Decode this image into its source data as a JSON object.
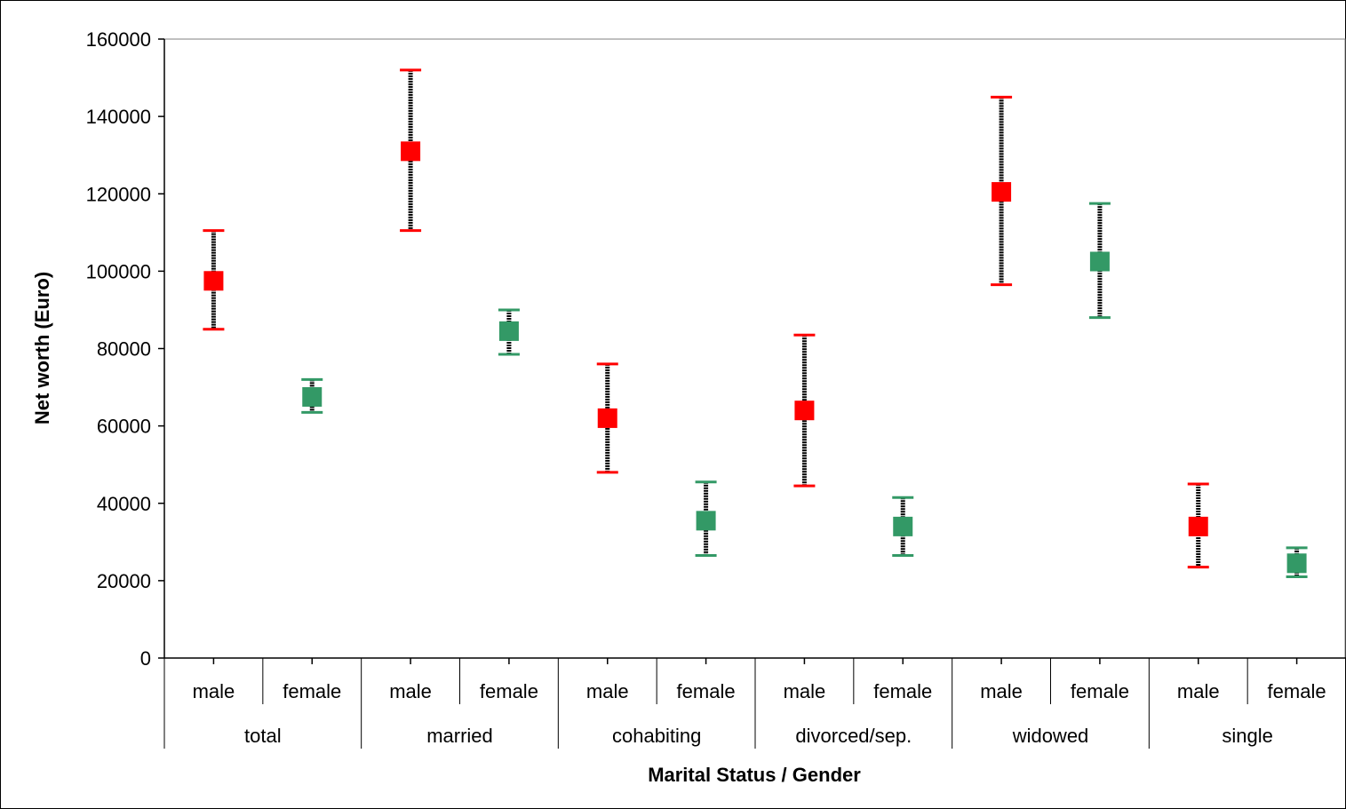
{
  "chart_data": {
    "type": "scatter",
    "subtype": "error-bar",
    "title": "",
    "xlabel": "Marital Status / Gender",
    "ylabel": "Net worth (Euro)",
    "ylim": [
      0,
      160000
    ],
    "yticks": [
      "0",
      "20000",
      "40000",
      "60000",
      "80000",
      "100000",
      "120000",
      "140000",
      "160000"
    ],
    "ytick_values": [
      0,
      20000,
      40000,
      60000,
      80000,
      100000,
      120000,
      140000,
      160000
    ],
    "grid": false,
    "legend": "none",
    "groups": [
      "total",
      "married",
      "cohabiting",
      "divorced/sep.",
      "widowed",
      "single"
    ],
    "subcategories": [
      "male",
      "female"
    ],
    "colors": {
      "male": "#ff0000",
      "female": "#339966",
      "error_bar": "#000000"
    },
    "points": [
      {
        "group": "total",
        "gender": "male",
        "value": 97500,
        "lower": 85000,
        "upper": 110500
      },
      {
        "group": "total",
        "gender": "female",
        "value": 67500,
        "lower": 63500,
        "upper": 72000
      },
      {
        "group": "married",
        "gender": "male",
        "value": 131000,
        "lower": 110500,
        "upper": 152000
      },
      {
        "group": "married",
        "gender": "female",
        "value": 84500,
        "lower": 78500,
        "upper": 90000
      },
      {
        "group": "cohabiting",
        "gender": "male",
        "value": 62000,
        "lower": 48000,
        "upper": 76000
      },
      {
        "group": "cohabiting",
        "gender": "female",
        "value": 35500,
        "lower": 26500,
        "upper": 45500
      },
      {
        "group": "divorced/sep.",
        "gender": "male",
        "value": 64000,
        "lower": 44500,
        "upper": 83500
      },
      {
        "group": "divorced/sep.",
        "gender": "female",
        "value": 34000,
        "lower": 26500,
        "upper": 41500
      },
      {
        "group": "widowed",
        "gender": "male",
        "value": 120500,
        "lower": 96500,
        "upper": 145000
      },
      {
        "group": "widowed",
        "gender": "female",
        "value": 102500,
        "lower": 88000,
        "upper": 117500
      },
      {
        "group": "single",
        "gender": "male",
        "value": 34000,
        "lower": 23500,
        "upper": 45000
      },
      {
        "group": "single",
        "gender": "female",
        "value": 24500,
        "lower": 21000,
        "upper": 28500
      }
    ]
  }
}
